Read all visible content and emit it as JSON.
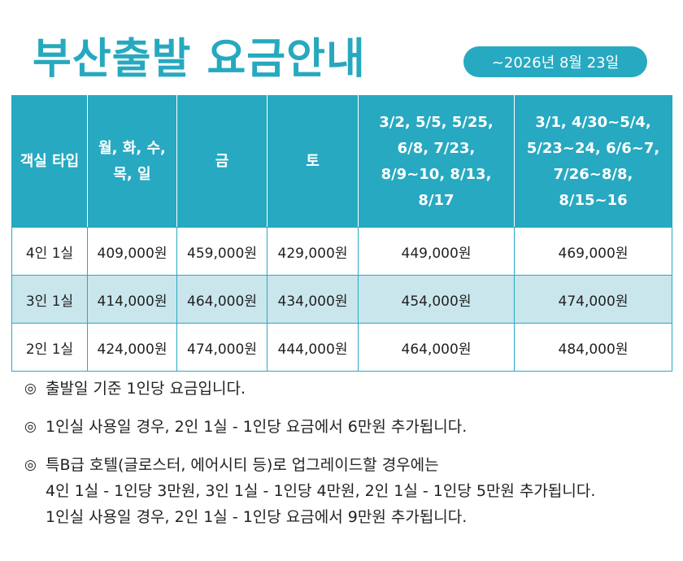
{
  "title": "부산출발 요금안내",
  "date_badge": "~2026년 8월 23일",
  "table": {
    "headers": [
      "객실 타입",
      "월, 화, 수,\n목, 일",
      "금",
      "토",
      "3/2, 5/5, 5/25,\n6/8, 7/23,\n8/9~10, 8/13,\n8/17",
      "3/1, 4/30~5/4,\n5/23~24, 6/6~7,\n7/26~8/8,\n8/15~16"
    ],
    "rows": [
      [
        "4인 1실",
        "409,000원",
        "459,000원",
        "429,000원",
        "449,000원",
        "469,000원"
      ],
      [
        "3인 1실",
        "414,000원",
        "464,000원",
        "434,000원",
        "454,000원",
        "474,000원"
      ],
      [
        "2인 1실",
        "424,000원",
        "474,000원",
        "444,000원",
        "464,000원",
        "484,000원"
      ]
    ]
  },
  "notes": {
    "bullet": "◎",
    "n1": "출발일 기준 1인당 요금입니다.",
    "n2": "1인실 사용일 경우, 2인 1실 - 1인당 요금에서 6만원 추가됩니다.",
    "n3_l1": "특B급 호텔(글로스터, 에어시티 등)로 업그레이드할 경우에는",
    "n3_l2": "4인 1실 - 1인당 3만원, 3인 1실 - 1인당 4만원, 2인 1실 - 1인당 5만원 추가됩니다.",
    "n3_l3": "1인실 사용일 경우, 2인 1실 - 1인당 요금에서 9만원 추가됩니다."
  },
  "colors": {
    "accent": "#27a9c1",
    "alt_row": "#c9e6ec"
  }
}
